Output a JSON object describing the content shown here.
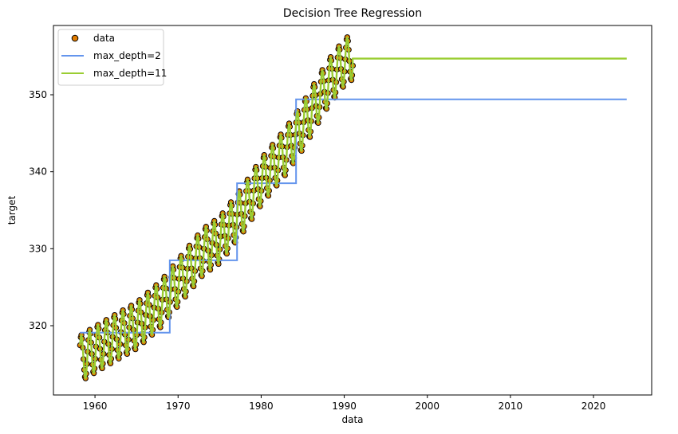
{
  "chart_data": {
    "type": "scatter",
    "title": "Decision Tree Regression",
    "xlabel": "data",
    "ylabel": "target",
    "xlim": [
      1955,
      2027
    ],
    "ylim": [
      311,
      359
    ],
    "x_ticks": [
      1960,
      1970,
      1980,
      1990,
      2000,
      2010,
      2020
    ],
    "y_ticks": [
      320,
      330,
      340,
      350
    ],
    "grid": false,
    "legend_position": "top-left",
    "scatter": {
      "name": "data",
      "color": "#e07b00",
      "edge_color": "#000000",
      "x_range": [
        1958.2,
        1991.0
      ],
      "seasonal_amplitude": 3.0,
      "trend": "concave-up",
      "points_per_year": 12,
      "points": [
        {
          "x": 1958.2,
          "y": 315.7
        },
        {
          "x": 1960.0,
          "y": 316.9
        },
        {
          "x": 1963.0,
          "y": 318.8
        },
        {
          "x": 1965.0,
          "y": 320.0
        },
        {
          "x": 1968.0,
          "y": 322.9
        },
        {
          "x": 1970.0,
          "y": 325.6
        },
        {
          "x": 1973.0,
          "y": 329.6
        },
        {
          "x": 1975.0,
          "y": 331.1
        },
        {
          "x": 1978.0,
          "y": 335.4
        },
        {
          "x": 1980.0,
          "y": 338.7
        },
        {
          "x": 1983.0,
          "y": 342.7
        },
        {
          "x": 1985.0,
          "y": 345.9
        },
        {
          "x": 1988.0,
          "y": 351.4
        },
        {
          "x": 1990.0,
          "y": 354.2
        },
        {
          "x": 1991.0,
          "y": 355.0
        }
      ]
    },
    "series": [
      {
        "name": "max_depth=2",
        "color": "#6495ed",
        "type": "step",
        "steps": [
          {
            "x": [
              1958.2,
              1969.0
            ],
            "y": 319.1
          },
          {
            "x": [
              1969.0,
              1977.1
            ],
            "y": 328.5
          },
          {
            "x": [
              1977.1,
              1984.2
            ],
            "y": 338.5
          },
          {
            "x": [
              1984.2,
              2024.0
            ],
            "y": 349.4
          }
        ]
      },
      {
        "name": "max_depth=11",
        "color": "#9acd32",
        "type": "line",
        "extrapolate": {
          "x": [
            1991.0,
            2024.0
          ],
          "y": 354.7
        }
      }
    ]
  }
}
